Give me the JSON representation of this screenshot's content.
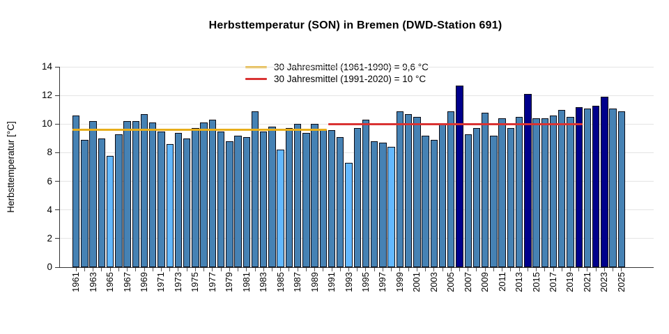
{
  "title": "Herbsttemperatur (SON) in Bremen (DWD-Station 691)",
  "y_axis": {
    "label": "Herbsttemperatur [°C]",
    "ticks": [
      0,
      2,
      4,
      6,
      8,
      10,
      12,
      14
    ]
  },
  "colors": {
    "bar_default": "#4682B4",
    "bar_record_warm": "#00008B",
    "bar_record_cold": "#63B8FF",
    "mean_1961_1990": "#E8AE1B",
    "mean_1991_2020": "#D93333",
    "gridline": "#E4E4E4"
  },
  "chart_data": {
    "type": "bar",
    "title": "Herbsttemperatur (SON) in Bremen (DWD-Station 691)",
    "xlabel": "",
    "ylabel": "Herbsttemperatur [°C]",
    "ylim": [
      0,
      14
    ],
    "grid": true,
    "categories": [
      1961,
      1962,
      1963,
      1964,
      1965,
      1966,
      1967,
      1968,
      1969,
      1970,
      1971,
      1972,
      1973,
      1974,
      1975,
      1976,
      1977,
      1978,
      1979,
      1980,
      1981,
      1982,
      1983,
      1984,
      1985,
      1986,
      1987,
      1988,
      1989,
      1990,
      1991,
      1992,
      1993,
      1994,
      1995,
      1996,
      1997,
      1998,
      1999,
      2000,
      2001,
      2002,
      2003,
      2004,
      2005,
      2006,
      2007,
      2008,
      2009,
      2010,
      2011,
      2012,
      2013,
      2014,
      2015,
      2016,
      2017,
      2018,
      2019,
      2020,
      2021,
      2022,
      2023,
      2024,
      2025
    ],
    "values": [
      10.6,
      8.9,
      10.2,
      9.0,
      7.8,
      9.3,
      10.2,
      10.2,
      10.7,
      10.1,
      9.5,
      8.6,
      9.4,
      9.0,
      9.7,
      10.1,
      10.3,
      9.5,
      8.8,
      9.2,
      9.1,
      10.9,
      9.5,
      9.8,
      8.2,
      9.7,
      10.0,
      9.4,
      10.0,
      9.6,
      9.6,
      9.1,
      7.3,
      9.7,
      10.3,
      8.8,
      8.7,
      8.4,
      10.9,
      10.7,
      10.5,
      9.2,
      8.9,
      10.0,
      10.9,
      12.7,
      9.3,
      9.7,
      10.8,
      9.2,
      10.4,
      9.7,
      10.5,
      12.1,
      10.4,
      10.4,
      10.6,
      11.0,
      10.5,
      11.2,
      11.1,
      11.3,
      11.9,
      11.1,
      10.9
    ],
    "record_warm_years": [
      2006,
      2014,
      2020,
      2022,
      2023
    ],
    "record_cold_years": [
      1965,
      1972,
      1985,
      1993,
      1998
    ],
    "x_tick_label_step": 2,
    "legend_position": "top",
    "reference_lines": [
      {
        "label": "30 Jahresmittel (1961-1990) = 9,6 °C",
        "value": 9.6,
        "from_year": 1961,
        "to_year": 1990,
        "color_key": "mean_1961_1990"
      },
      {
        "label": "30 Jahresmittel (1991-2020) = 10 °C",
        "value": 10,
        "from_year": 1991,
        "to_year": 2020,
        "color_key": "mean_1991_2020"
      }
    ]
  }
}
